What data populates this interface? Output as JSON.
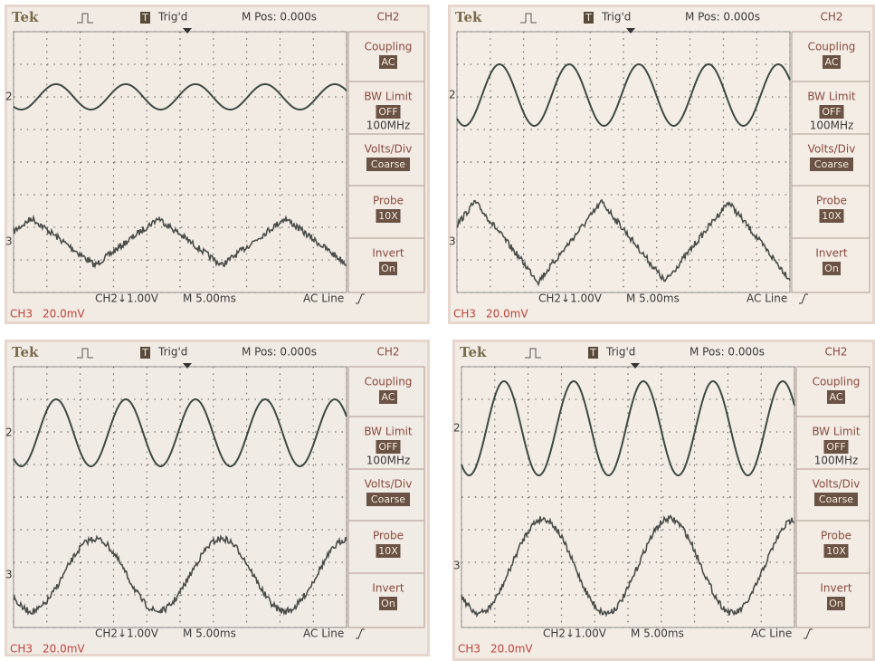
{
  "screens": [
    {
      "header": {
        "brand": "Tek",
        "trigger_icon": "T",
        "trigger": "Trig'd",
        "position": "M Pos: 0.000s",
        "channel": "CH2"
      },
      "menu": [
        {
          "label": "Coupling",
          "value": "AC"
        },
        {
          "label": "BW Limit",
          "value": "OFF",
          "detail": "100MHz"
        },
        {
          "label": "Volts/Div",
          "value": "Coarse"
        },
        {
          "label": "Probe",
          "value": "10X"
        },
        {
          "label": "Invert",
          "value": "On"
        }
      ],
      "markers": [
        "2",
        "3"
      ],
      "footer": {
        "ch2_scale": "CH2↓1.00V",
        "timebase": "M 5.00ms",
        "trigger_source": "AC Line",
        "ch3": "CH3",
        "ch3_scale": "20.0mV"
      }
    },
    {
      "header": {
        "brand": "Tek",
        "trigger_icon": "T",
        "trigger": "Trig'd",
        "position": "M Pos: 0.000s",
        "channel": "CH2"
      },
      "menu": [
        {
          "label": "Coupling",
          "value": "AC"
        },
        {
          "label": "BW Limit",
          "value": "OFF",
          "detail": "100MHz"
        },
        {
          "label": "Volts/Div",
          "value": "Coarse"
        },
        {
          "label": "Probe",
          "value": "10X"
        },
        {
          "label": "Invert",
          "value": "On"
        }
      ],
      "markers": [
        "2",
        "3"
      ],
      "footer": {
        "ch2_scale": "CH2↓1.00V",
        "timebase": "M 5.00ms",
        "trigger_source": "AC Line",
        "ch3": "CH3",
        "ch3_scale": "20.0mV"
      }
    },
    {
      "header": {
        "brand": "Tek",
        "trigger_icon": "T",
        "trigger": "Trig'd",
        "position": "M Pos: 0.000s",
        "channel": "CH2"
      },
      "menu": [
        {
          "label": "Coupling",
          "value": "AC"
        },
        {
          "label": "BW Limit",
          "value": "OFF",
          "detail": "100MHz"
        },
        {
          "label": "Volts/Div",
          "value": "Coarse"
        },
        {
          "label": "Probe",
          "value": "10X"
        },
        {
          "label": "Invert",
          "value": "On"
        }
      ],
      "markers": [
        "2",
        "3"
      ],
      "footer": {
        "ch2_scale": "CH2↓1.00V",
        "timebase": "M 5.00ms",
        "trigger_source": "AC Line",
        "ch3": "CH3",
        "ch3_scale": "20.0mV"
      }
    },
    {
      "header": {
        "brand": "Tek",
        "trigger_icon": "T",
        "trigger": "Trig'd",
        "position": "M Pos: 0.000s",
        "channel": "CH2"
      },
      "menu": [
        {
          "label": "Coupling",
          "value": "AC"
        },
        {
          "label": "BW Limit",
          "value": "OFF",
          "detail": "100MHz"
        },
        {
          "label": "Volts/Div",
          "value": "Coarse"
        },
        {
          "label": "Probe",
          "value": "10X"
        },
        {
          "label": "Invert",
          "value": "On"
        }
      ],
      "markers": [
        "2",
        "3"
      ],
      "footer": {
        "ch2_scale": "CH2↓1.00V",
        "timebase": "M 5.00ms",
        "trigger_source": "AC Line",
        "ch3": "CH3",
        "ch3_scale": "20.0mV"
      }
    }
  ]
}
